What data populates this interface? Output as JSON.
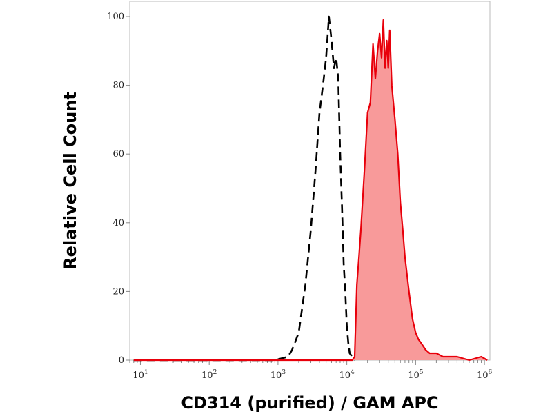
{
  "chart_data": {
    "type": "area",
    "xlabel": "CD314 (purified) / GAM APC",
    "ylabel": "Relative Cell Count",
    "x_scale": "log10",
    "xlim": [
      7,
      1200000
    ],
    "ylim": [
      0,
      100
    ],
    "y_ticks": [
      0,
      20,
      40,
      60,
      80,
      100
    ],
    "x_ticks": [
      {
        "base": "10",
        "exp": "1",
        "value": 10
      },
      {
        "base": "10",
        "exp": "2",
        "value": 100
      },
      {
        "base": "10",
        "exp": "3",
        "value": 1000
      },
      {
        "base": "10",
        "exp": "4",
        "value": 10000
      },
      {
        "base": "10",
        "exp": "5",
        "value": 100000
      },
      {
        "base": "10",
        "exp": "6",
        "value": 1000000
      }
    ],
    "grid": false,
    "legend": "none",
    "series": [
      {
        "style": "dashed-outline",
        "color": "#000000",
        "x": [
          8,
          900,
          1400,
          1600,
          2000,
          2500,
          3000,
          3500,
          4000,
          4500,
          5000,
          5500,
          6000,
          6500,
          7000,
          7500,
          8000,
          8500,
          9000,
          9500,
          10000,
          10500,
          11000,
          12000,
          13000
        ],
        "y": [
          0,
          0,
          1,
          3,
          8,
          22,
          38,
          55,
          72,
          80,
          88,
          100,
          93,
          85,
          88,
          82,
          60,
          45,
          28,
          20,
          10,
          5,
          2,
          1,
          0
        ]
      },
      {
        "style": "filled",
        "color": "#e8000b",
        "fill": "#f89a9a",
        "x": [
          8,
          12000,
          13000,
          14000,
          15000,
          16000,
          18000,
          20000,
          22000,
          24000,
          26000,
          28000,
          30000,
          32000,
          34000,
          36000,
          38000,
          40000,
          42000,
          45000,
          50000,
          55000,
          60000,
          65000,
          70000,
          80000,
          90000,
          100000,
          110000,
          120000,
          140000,
          160000,
          200000,
          250000,
          300000,
          400000,
          600000,
          900000,
          1100000
        ],
        "y": [
          0,
          0,
          1,
          22,
          30,
          38,
          55,
          72,
          75,
          92,
          82,
          90,
          95,
          88,
          99,
          85,
          93,
          85,
          96,
          80,
          70,
          60,
          46,
          38,
          30,
          20,
          12,
          8,
          6,
          5,
          3,
          2,
          2,
          1,
          1,
          1,
          0,
          1,
          0
        ]
      }
    ]
  }
}
